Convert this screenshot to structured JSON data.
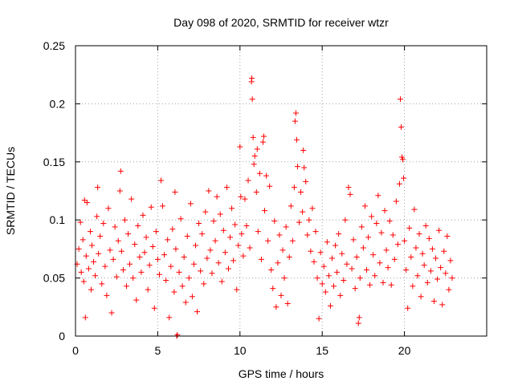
{
  "chart_data": {
    "type": "scatter",
    "title": "Day 098 of 2020, SRMTID for receiver wtzr",
    "xlabel": "GPS time / hours",
    "ylabel": "SRMTID / TECUs",
    "xlim": [
      0,
      25
    ],
    "ylim": [
      0,
      0.25
    ],
    "xticks": [
      0,
      5,
      10,
      15,
      20
    ],
    "xtick_labels": [
      "0",
      "5",
      "10",
      "15",
      "20"
    ],
    "yticks": [
      0,
      0.05,
      0.1,
      0.15,
      0.2,
      0.25
    ],
    "ytick_labels": [
      "0",
      "0.05",
      "0.1",
      "0.15",
      "0.2",
      "0.25"
    ],
    "grid": true,
    "marker": "+",
    "color": "#ff0000",
    "series": [
      {
        "name": "SRMTID",
        "points": [
          [
            0.1,
            0.062
          ],
          [
            0.2,
            0.075
          ],
          [
            0.3,
            0.098
          ],
          [
            0.35,
            0.055
          ],
          [
            0.45,
            0.083
          ],
          [
            0.5,
            0.047
          ],
          [
            0.55,
            0.117
          ],
          [
            0.6,
            0.016
          ],
          [
            0.65,
            0.069
          ],
          [
            0.7,
            0.115
          ],
          [
            0.8,
            0.058
          ],
          [
            0.9,
            0.09
          ],
          [
            0.95,
            0.04
          ],
          [
            1.0,
            0.078
          ],
          [
            1.1,
            0.064
          ],
          [
            1.2,
            0.052
          ],
          [
            1.3,
            0.103
          ],
          [
            1.35,
            0.128
          ],
          [
            1.4,
            0.071
          ],
          [
            1.5,
            0.086
          ],
          [
            1.6,
            0.045
          ],
          [
            1.7,
            0.097
          ],
          [
            1.8,
            0.06
          ],
          [
            1.9,
            0.035
          ],
          [
            2.0,
            0.11
          ],
          [
            2.1,
            0.074
          ],
          [
            2.2,
            0.02
          ],
          [
            2.3,
            0.066
          ],
          [
            2.4,
            0.094
          ],
          [
            2.5,
            0.051
          ],
          [
            2.6,
            0.082
          ],
          [
            2.7,
            0.125
          ],
          [
            2.75,
            0.142
          ],
          [
            2.8,
            0.073
          ],
          [
            2.9,
            0.057
          ],
          [
            3.0,
            0.1
          ],
          [
            3.1,
            0.043
          ],
          [
            3.2,
            0.088
          ],
          [
            3.3,
            0.062
          ],
          [
            3.4,
            0.118
          ],
          [
            3.5,
            0.05
          ],
          [
            3.6,
            0.079
          ],
          [
            3.7,
            0.031
          ],
          [
            3.8,
            0.095
          ],
          [
            3.9,
            0.068
          ],
          [
            4.0,
            0.055
          ],
          [
            4.1,
            0.104
          ],
          [
            4.2,
            0.072
          ],
          [
            4.3,
            0.085
          ],
          [
            4.4,
            0.04
          ],
          [
            4.5,
            0.061
          ],
          [
            4.6,
            0.111
          ],
          [
            4.7,
            0.077
          ],
          [
            4.8,
            0.024
          ],
          [
            4.9,
            0.09
          ],
          [
            5.0,
            0.066
          ],
          [
            5.1,
            0.053
          ],
          [
            5.2,
            0.134
          ],
          [
            5.3,
            0.112
          ],
          [
            5.4,
            0.07
          ],
          [
            5.5,
            0.048
          ],
          [
            5.6,
            0.083
          ],
          [
            5.7,
            0.016
          ],
          [
            5.8,
            0.06
          ],
          [
            5.9,
            0.092
          ],
          [
            6.0,
            0.038
          ],
          [
            6.05,
            0.124
          ],
          [
            6.1,
            0.075
          ],
          [
            6.15,
            0.0
          ],
          [
            6.2,
            0.001
          ],
          [
            6.3,
            0.055
          ],
          [
            6.4,
            0.101
          ],
          [
            6.5,
            0.043
          ],
          [
            6.6,
            0.068
          ],
          [
            6.7,
            0.029
          ],
          [
            6.8,
            0.086
          ],
          [
            6.9,
            0.05
          ],
          [
            7.0,
            0.114
          ],
          [
            7.1,
            0.034
          ],
          [
            7.2,
            0.062
          ],
          [
            7.3,
            0.078
          ],
          [
            7.4,
            0.021
          ],
          [
            7.5,
            0.097
          ],
          [
            7.6,
            0.056
          ],
          [
            7.7,
            0.088
          ],
          [
            7.8,
            0.045
          ],
          [
            7.9,
            0.107
          ],
          [
            8.0,
            0.067
          ],
          [
            8.1,
            0.125
          ],
          [
            8.2,
            0.074
          ],
          [
            8.3,
            0.054
          ],
          [
            8.4,
            0.099
          ],
          [
            8.5,
            0.082
          ],
          [
            8.6,
            0.12
          ],
          [
            8.7,
            0.063
          ],
          [
            8.8,
            0.105
          ],
          [
            8.9,
            0.047
          ],
          [
            9.0,
            0.091
          ],
          [
            9.1,
            0.072
          ],
          [
            9.2,
            0.128
          ],
          [
            9.3,
            0.058
          ],
          [
            9.4,
            0.085
          ],
          [
            9.5,
            0.11
          ],
          [
            9.6,
            0.065
          ],
          [
            9.7,
            0.096
          ],
          [
            9.8,
            0.04
          ],
          [
            9.9,
            0.078
          ],
          [
            10.0,
            0.163
          ],
          [
            10.05,
            0.12
          ],
          [
            10.1,
            0.088
          ],
          [
            10.2,
            0.069
          ],
          [
            10.3,
            0.118
          ],
          [
            10.4,
            0.095
          ],
          [
            10.5,
            0.134
          ],
          [
            10.6,
            0.076
          ],
          [
            10.7,
            0.219
          ],
          [
            10.72,
            0.222
          ],
          [
            10.75,
            0.204
          ],
          [
            10.8,
            0.171
          ],
          [
            10.85,
            0.148
          ],
          [
            10.9,
            0.155
          ],
          [
            11.0,
            0.124
          ],
          [
            11.05,
            0.161
          ],
          [
            11.1,
            0.09
          ],
          [
            11.2,
            0.14
          ],
          [
            11.3,
            0.066
          ],
          [
            11.4,
            0.167
          ],
          [
            11.45,
            0.172
          ],
          [
            11.5,
            0.108
          ],
          [
            11.6,
            0.138
          ],
          [
            11.7,
            0.082
          ],
          [
            11.8,
            0.129
          ],
          [
            11.9,
            0.057
          ],
          [
            12.0,
            0.041
          ],
          [
            12.1,
            0.099
          ],
          [
            12.2,
            0.025
          ],
          [
            12.3,
            0.063
          ],
          [
            12.4,
            0.087
          ],
          [
            12.5,
            0.035
          ],
          [
            12.6,
            0.074
          ],
          [
            12.7,
            0.05
          ],
          [
            12.8,
            0.094
          ],
          [
            12.9,
            0.028
          ],
          [
            13.0,
            0.068
          ],
          [
            13.1,
            0.112
          ],
          [
            13.2,
            0.082
          ],
          [
            13.3,
            0.128
          ],
          [
            13.35,
            0.185
          ],
          [
            13.4,
            0.192
          ],
          [
            13.45,
            0.169
          ],
          [
            13.5,
            0.146
          ],
          [
            13.6,
            0.098
          ],
          [
            13.7,
            0.124
          ],
          [
            13.8,
            0.107
          ],
          [
            13.85,
            0.16
          ],
          [
            13.9,
            0.145
          ],
          [
            14.0,
            0.133
          ],
          [
            14.1,
            0.087
          ],
          [
            14.2,
            0.1
          ],
          [
            14.3,
            0.073
          ],
          [
            14.4,
            0.11
          ],
          [
            14.5,
            0.064
          ],
          [
            14.6,
            0.09
          ],
          [
            14.7,
            0.05
          ],
          [
            14.8,
            0.015
          ],
          [
            14.9,
            0.072
          ],
          [
            15.0,
            0.045
          ],
          [
            15.1,
            0.06
          ],
          [
            15.2,
            0.038
          ],
          [
            15.3,
            0.081
          ],
          [
            15.4,
            0.052
          ],
          [
            15.5,
            0.026
          ],
          [
            15.6,
            0.067
          ],
          [
            15.7,
            0.043
          ],
          [
            15.8,
            0.078
          ],
          [
            15.9,
            0.055
          ],
          [
            16.0,
            0.088
          ],
          [
            16.1,
            0.035
          ],
          [
            16.2,
            0.071
          ],
          [
            16.3,
            0.048
          ],
          [
            16.4,
            0.1
          ],
          [
            16.5,
            0.062
          ],
          [
            16.6,
            0.128
          ],
          [
            16.7,
            0.122
          ],
          [
            16.8,
            0.058
          ],
          [
            16.9,
            0.083
          ],
          [
            17.0,
            0.041
          ],
          [
            17.1,
            0.068
          ],
          [
            17.2,
            0.011
          ],
          [
            17.25,
            0.016
          ],
          [
            17.3,
            0.05
          ],
          [
            17.4,
            0.094
          ],
          [
            17.5,
            0.076
          ],
          [
            17.6,
            0.112
          ],
          [
            17.7,
            0.057
          ],
          [
            17.8,
            0.085
          ],
          [
            17.9,
            0.044
          ],
          [
            18.0,
            0.103
          ],
          [
            18.1,
            0.07
          ],
          [
            18.2,
            0.052
          ],
          [
            18.3,
            0.097
          ],
          [
            18.4,
            0.121
          ],
          [
            18.5,
            0.063
          ],
          [
            18.6,
            0.089
          ],
          [
            18.7,
            0.046
          ],
          [
            18.8,
            0.108
          ],
          [
            18.9,
            0.074
          ],
          [
            19.0,
            0.059
          ],
          [
            19.1,
            0.099
          ],
          [
            19.2,
            0.044
          ],
          [
            19.3,
            0.087
          ],
          [
            19.4,
            0.066
          ],
          [
            19.5,
            0.116
          ],
          [
            19.6,
            0.079
          ],
          [
            19.7,
            0.131
          ],
          [
            19.75,
            0.204
          ],
          [
            19.8,
            0.18
          ],
          [
            19.85,
            0.154
          ],
          [
            19.9,
            0.152
          ],
          [
            19.95,
            0.136
          ],
          [
            20.0,
            0.082
          ],
          [
            20.1,
            0.057
          ],
          [
            20.2,
            0.024
          ],
          [
            20.3,
            0.093
          ],
          [
            20.4,
            0.068
          ],
          [
            20.5,
            0.043
          ],
          [
            20.6,
            0.109
          ],
          [
            20.7,
            0.076
          ],
          [
            20.8,
            0.052
          ],
          [
            20.9,
            0.088
          ],
          [
            21.0,
            0.034
          ],
          [
            21.1,
            0.071
          ],
          [
            21.2,
            0.061
          ],
          [
            21.3,
            0.095
          ],
          [
            21.4,
            0.046
          ],
          [
            21.5,
            0.084
          ],
          [
            21.6,
            0.056
          ],
          [
            21.7,
            0.075
          ],
          [
            21.8,
            0.03
          ],
          [
            21.9,
            0.067
          ],
          [
            22.0,
            0.049
          ],
          [
            22.1,
            0.091
          ],
          [
            22.2,
            0.059
          ],
          [
            22.3,
            0.027
          ],
          [
            22.4,
            0.073
          ],
          [
            22.5,
            0.054
          ],
          [
            22.6,
            0.086
          ],
          [
            22.7,
            0.04
          ],
          [
            22.8,
            0.065
          ],
          [
            22.9,
            0.05
          ]
        ]
      }
    ]
  }
}
